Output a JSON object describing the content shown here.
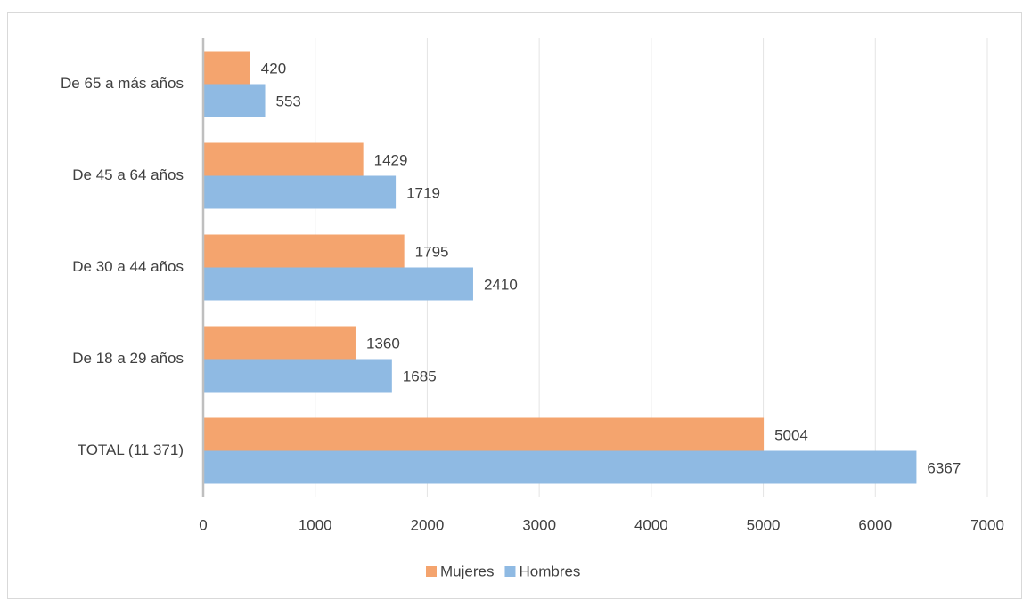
{
  "chart_data": {
    "type": "bar",
    "orientation": "horizontal",
    "categories": [
      "De 65 a más años",
      "De 45 a 64 años",
      "De 30 a 44 años",
      "De 18 a 29 años",
      "TOTAL (11 371)"
    ],
    "series": [
      {
        "name": "Mujeres",
        "color": "#f4a46e",
        "values": [
          420,
          1429,
          1795,
          1360,
          5004
        ]
      },
      {
        "name": "Hombres",
        "color": "#8fbae3",
        "values": [
          553,
          1719,
          2410,
          1685,
          6367
        ]
      }
    ],
    "xlim": [
      0,
      7000
    ],
    "xticks": [
      0,
      1000,
      2000,
      3000,
      4000,
      5000,
      6000,
      7000
    ],
    "grid": true,
    "legend": "bottom"
  }
}
